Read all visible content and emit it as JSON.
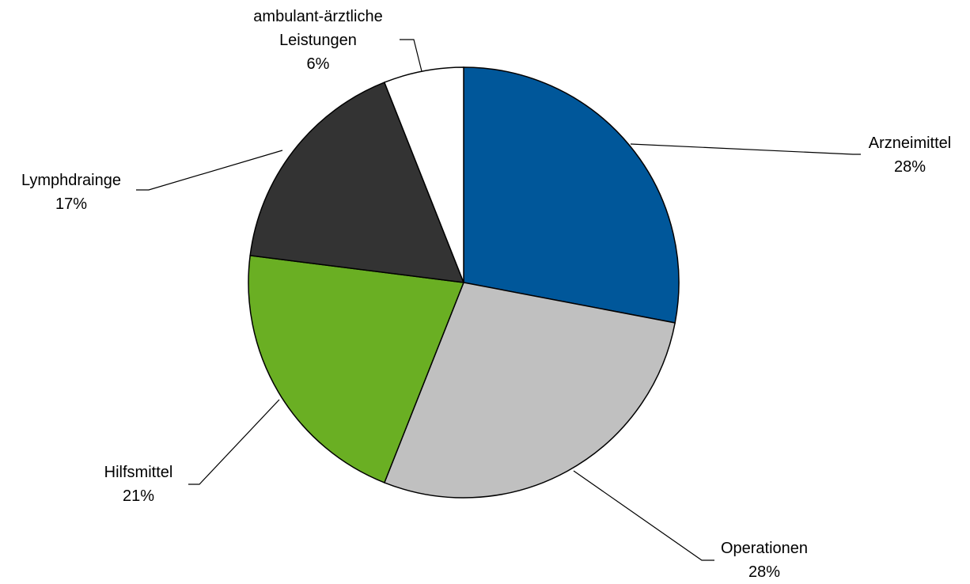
{
  "chart_data": {
    "type": "pie",
    "categories": [
      "Arzneimittel",
      "Operationen",
      "Hilfsmittel",
      "Lymphdrainge",
      "ambulant-ärztliche\nLeistungen"
    ],
    "values": [
      28,
      28,
      21,
      17,
      6
    ],
    "value_labels": [
      "28%",
      "28%",
      "21%",
      "17%",
      "6%"
    ],
    "colors": [
      "#00579a",
      "#c0c0c0",
      "#6aaf23",
      "#333333",
      "#ffffff"
    ]
  }
}
